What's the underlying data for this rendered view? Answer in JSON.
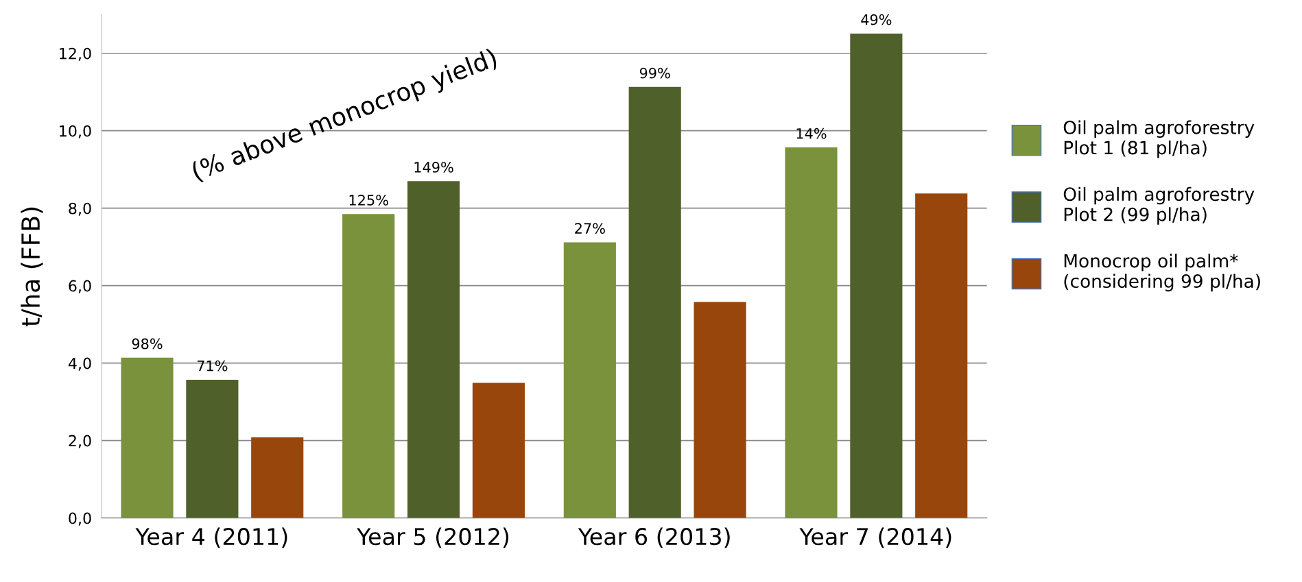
{
  "chart_data": {
    "type": "bar",
    "ylabel": "t/ha (FFB)",
    "categories": [
      "Year 4 (2011)",
      "Year 5 (2012)",
      "Year 6 (2013)",
      "Year 7 (2014)"
    ],
    "series": [
      {
        "name": "Oil palm agroforestry\nPlot 1 (81 pl/ha)",
        "color": "#7a923b",
        "values": [
          4.14,
          7.85,
          7.12,
          9.57
        ]
      },
      {
        "name": "Oil palm agroforestry\nPlot 2 (99 pl/ha)",
        "color": "#50602a",
        "values": [
          3.57,
          8.7,
          11.13,
          12.51
        ]
      },
      {
        "name": "Monocrop oil palm*\n(considering 99 pl/ha)",
        "color": "#98460b",
        "values": [
          2.08,
          3.49,
          5.58,
          8.38
        ]
      }
    ],
    "ylim": [
      0,
      13
    ],
    "yticks": [
      {
        "value": 0,
        "label": "0,0"
      },
      {
        "value": 2,
        "label": "2,0"
      },
      {
        "value": 4,
        "label": "4,0"
      },
      {
        "value": 6,
        "label": "6,0"
      },
      {
        "value": 8,
        "label": "8,0"
      },
      {
        "value": 10,
        "label": "10,0"
      },
      {
        "value": 12,
        "label": "12,0"
      }
    ],
    "annotations": [
      "(% above monocrop yield)",
      "98%",
      "125%",
      "27%",
      "14%",
      {
        "text": "71%",
        "x": "Year 4 (2011)",
        "y": 3.57
      },
      {
        "text": "149%",
        "x": "Year 5 (2012)",
        "y": 8.7
      },
      {
        "text": "99%",
        "x": "Year 6 (2013)",
        "y": 11.13
      },
      {
        "text": "49%",
        "x": "Year 7 (2014)",
        "y": 12.51
      }
    ],
    "grid": "y",
    "legend": "right"
  }
}
